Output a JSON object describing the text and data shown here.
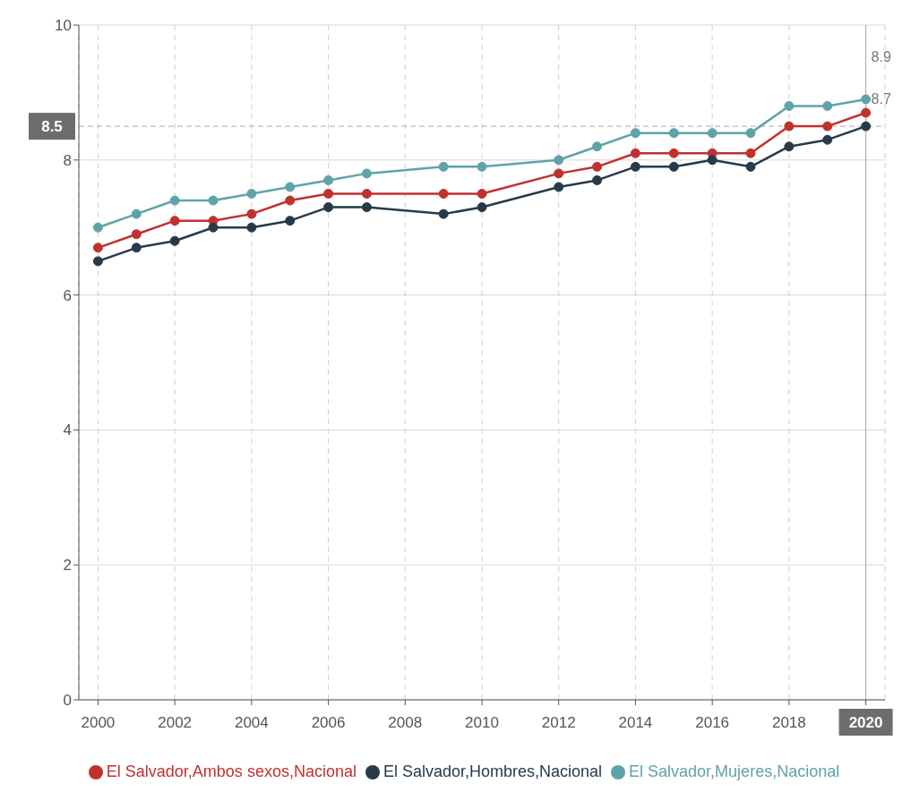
{
  "chart_data": {
    "type": "line",
    "x": [
      2000,
      2001,
      2002,
      2003,
      2004,
      2005,
      2006,
      2007,
      2009,
      2010,
      2012,
      2013,
      2014,
      2015,
      2016,
      2017,
      2018,
      2019,
      2020
    ],
    "series": [
      {
        "name": "El Salvador,Ambos sexos,Nacional",
        "color": "#c0312e",
        "values": [
          6.7,
          6.9,
          7.1,
          7.1,
          7.2,
          7.4,
          7.5,
          7.5,
          7.5,
          7.5,
          7.8,
          7.9,
          8.1,
          8.1,
          8.1,
          8.1,
          8.5,
          8.5,
          8.7
        ],
        "value_labels": [
          null,
          null,
          null,
          null,
          null,
          null,
          null,
          null,
          null,
          null,
          null,
          null,
          null,
          null,
          null,
          null,
          null,
          null,
          "8.7"
        ]
      },
      {
        "name": "El Salvador,Hombres,Nacional",
        "color": "#263a4a",
        "values": [
          6.5,
          6.7,
          6.8,
          7.0,
          7.0,
          7.1,
          7.3,
          7.3,
          7.2,
          7.3,
          7.6,
          7.7,
          7.9,
          7.9,
          8.0,
          7.9,
          8.2,
          8.3,
          8.5
        ]
      },
      {
        "name": "El Salvador,Mujeres,Nacional",
        "color": "#5fa3a8",
        "values": [
          7.0,
          7.2,
          7.4,
          7.4,
          7.5,
          7.6,
          7.7,
          7.8,
          7.9,
          7.9,
          8.0,
          8.2,
          8.4,
          8.4,
          8.4,
          8.4,
          8.8,
          8.8,
          8.9
        ],
        "value_labels": [
          null,
          null,
          null,
          null,
          null,
          null,
          null,
          null,
          null,
          null,
          null,
          null,
          null,
          null,
          null,
          null,
          null,
          null,
          "8.9"
        ]
      }
    ],
    "xlim": [
      1999.5,
      2020.5
    ],
    "xticks": [
      2000,
      2002,
      2004,
      2006,
      2008,
      2010,
      2012,
      2014,
      2016,
      2018,
      2020
    ],
    "ylim": [
      0,
      10
    ],
    "yticks": [
      0,
      2,
      4,
      6,
      8,
      10
    ],
    "grid": true,
    "legend": "bottom",
    "marker": "circle",
    "line_style": "solid",
    "ref_lines": [
      {
        "axis": "y",
        "value": 8.5,
        "label": "8.5",
        "line_style": "dashed",
        "color": "#aaaaaa"
      },
      {
        "axis": "x",
        "value": 2020,
        "line_style": "solid",
        "color": "#aaaaaa"
      }
    ]
  }
}
